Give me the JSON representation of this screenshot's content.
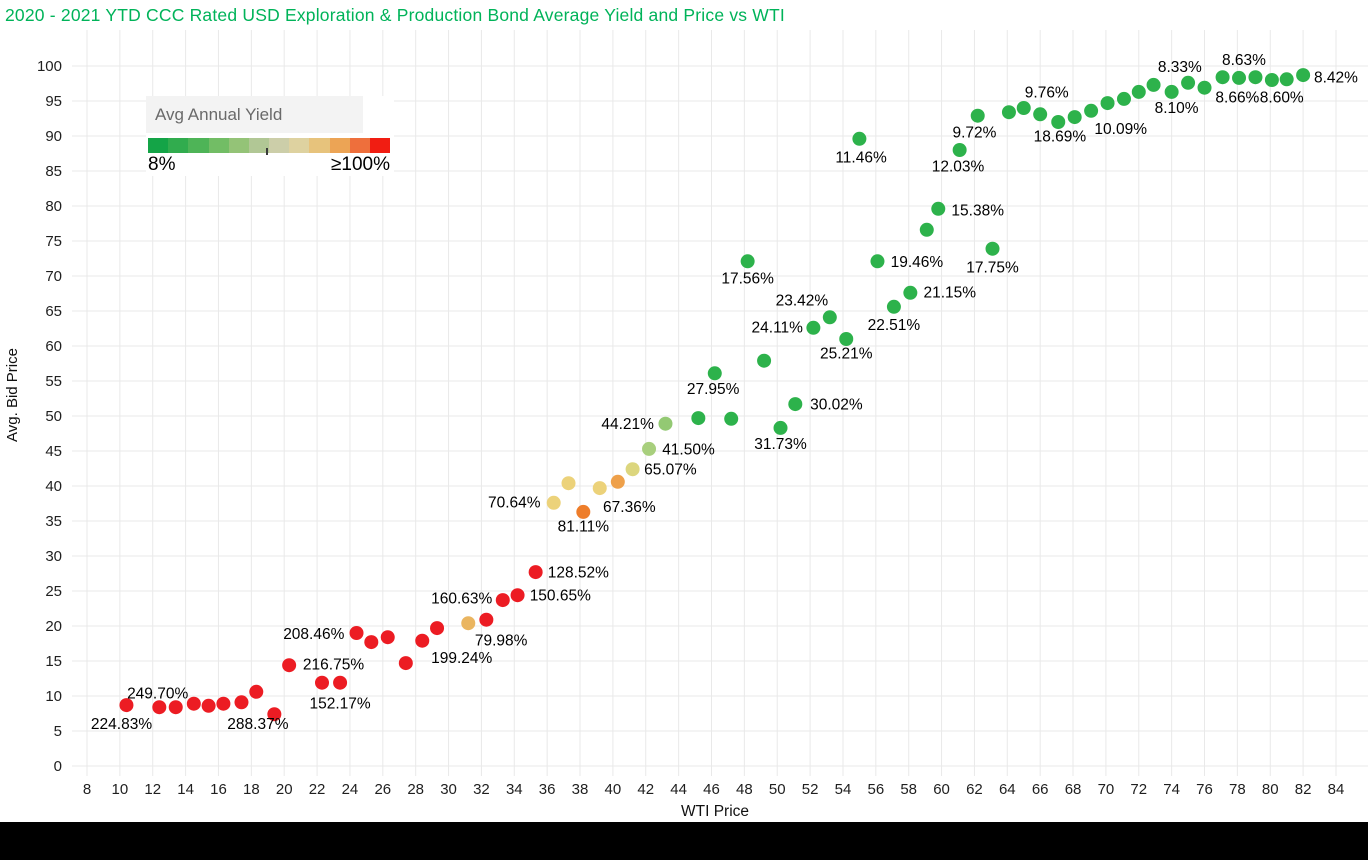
{
  "title": {
    "text": "2020 - 2021 YTD CCC Rated USD Exploration & Production Bond Average Yield and Price vs WTI",
    "color": "#00b359"
  },
  "legend": {
    "title": "Avg Annual Yield",
    "min_label": "8%",
    "max_label": "≥100%",
    "tick_fraction": 0.486,
    "gradient_colors": [
      "#14a447",
      "#31ac4e",
      "#4eb457",
      "#72bd65",
      "#94c377",
      "#b1c795",
      "#cccea9",
      "#ded2a0",
      "#e7c37c",
      "#eca455",
      "#ee6f3c",
      "#f11d12"
    ]
  },
  "axes": {
    "x": {
      "title": "WTI Price",
      "ticks": [
        8,
        10,
        12,
        14,
        16,
        18,
        20,
        22,
        24,
        26,
        28,
        30,
        32,
        34,
        36,
        38,
        40,
        42,
        44,
        46,
        48,
        50,
        52,
        54,
        56,
        58,
        60,
        62,
        64,
        66,
        68,
        70,
        72,
        74,
        76,
        78,
        80,
        82,
        84
      ]
    },
    "y": {
      "title": "Avg. Bid Price",
      "ticks": [
        0,
        5,
        10,
        15,
        20,
        25,
        30,
        35,
        40,
        45,
        50,
        55,
        60,
        65,
        70,
        75,
        80,
        85,
        90,
        95,
        100
      ]
    }
  },
  "chart_data": {
    "type": "scatter",
    "title": "2020 - 2021 YTD CCC Rated USD Exploration & Production Bond Average Yield and Price vs WTI",
    "xlabel": "WTI Price",
    "ylabel": "Avg. Bid Price",
    "xlim": [
      7,
      85
    ],
    "ylim": [
      0,
      102
    ],
    "grid": true,
    "legend_position": "top-left",
    "color_scale": {
      "label": "Avg Annual Yield",
      "min": "8%",
      "max": "≥100%",
      "low_color": "#14a447",
      "high_color": "#f11d12"
    },
    "palette": {
      "red": "#ec1c23",
      "tan": "#eab560",
      "yellow": "#ecd27a",
      "orange": "#ee7d2a",
      "orange2": "#eea04a",
      "khaki": "#dcd67e",
      "lightgreen": "#a8cf7d",
      "lightgreen2": "#93c973",
      "green": "#2db24b"
    },
    "points": [
      {
        "x": 10.4,
        "y": 8.7,
        "c": "red",
        "yield": "224.83%"
      },
      {
        "x": 12.4,
        "y": 8.4,
        "c": "red",
        "yield": "249.70%"
      },
      {
        "x": 13.4,
        "y": 8.4,
        "c": "red"
      },
      {
        "x": 14.5,
        "y": 8.9,
        "c": "red"
      },
      {
        "x": 15.4,
        "y": 8.6,
        "c": "red",
        "yield": "288.37%"
      },
      {
        "x": 16.3,
        "y": 8.9,
        "c": "red"
      },
      {
        "x": 17.4,
        "y": 9.1,
        "c": "red"
      },
      {
        "x": 18.3,
        "y": 10.6,
        "c": "red"
      },
      {
        "x": 19.4,
        "y": 7.4,
        "c": "red"
      },
      {
        "x": 20.3,
        "y": 14.4,
        "c": "red",
        "yield": "216.75%"
      },
      {
        "x": 22.3,
        "y": 11.9,
        "c": "red",
        "yield": "152.17%"
      },
      {
        "x": 23.4,
        "y": 11.9,
        "c": "red"
      },
      {
        "x": 24.4,
        "y": 19.0,
        "c": "red",
        "yield": "208.46%"
      },
      {
        "x": 25.3,
        "y": 17.7,
        "c": "red"
      },
      {
        "x": 26.3,
        "y": 18.4,
        "c": "red"
      },
      {
        "x": 27.4,
        "y": 14.7,
        "c": "red",
        "yield": "199.24%"
      },
      {
        "x": 28.4,
        "y": 17.9,
        "c": "red"
      },
      {
        "x": 29.3,
        "y": 19.7,
        "c": "red"
      },
      {
        "x": 31.2,
        "y": 20.4,
        "c": "tan",
        "yield": "79.98%"
      },
      {
        "x": 32.3,
        "y": 20.9,
        "c": "red"
      },
      {
        "x": 33.3,
        "y": 23.7,
        "c": "red",
        "yield": "160.63%"
      },
      {
        "x": 34.2,
        "y": 24.4,
        "c": "red",
        "yield": "150.65%"
      },
      {
        "x": 35.3,
        "y": 27.7,
        "c": "red",
        "yield": "128.52%"
      },
      {
        "x": 36.4,
        "y": 37.6,
        "c": "yellow",
        "yield": "70.64%"
      },
      {
        "x": 37.3,
        "y": 40.4,
        "c": "yellow"
      },
      {
        "x": 38.2,
        "y": 36.3,
        "c": "orange",
        "yield": "81.11%"
      },
      {
        "x": 39.2,
        "y": 39.7,
        "c": "yellow"
      },
      {
        "x": 40.3,
        "y": 40.6,
        "c": "orange2",
        "yield": "67.36%"
      },
      {
        "x": 41.2,
        "y": 42.4,
        "c": "khaki",
        "yield": "65.07%"
      },
      {
        "x": 42.2,
        "y": 45.3,
        "c": "lightgreen",
        "yield": "41.50%"
      },
      {
        "x": 43.2,
        "y": 48.9,
        "c": "lightgreen2",
        "yield": "44.21%"
      },
      {
        "x": 45.2,
        "y": 49.7,
        "c": "green",
        "yield": "27.95%"
      },
      {
        "x": 46.2,
        "y": 56.1,
        "c": "green"
      },
      {
        "x": 47.2,
        "y": 49.6,
        "c": "green"
      },
      {
        "x": 48.2,
        "y": 72.1,
        "c": "green",
        "yield": "17.56%"
      },
      {
        "x": 49.2,
        "y": 57.9,
        "c": "green"
      },
      {
        "x": 50.2,
        "y": 48.3,
        "c": "green",
        "yield": "31.73%"
      },
      {
        "x": 51.1,
        "y": 51.7,
        "c": "green",
        "yield": "30.02%"
      },
      {
        "x": 52.2,
        "y": 62.6,
        "c": "green",
        "yield": "24.11%"
      },
      {
        "x": 53.2,
        "y": 64.1,
        "c": "green",
        "yield": "23.42%"
      },
      {
        "x": 54.2,
        "y": 61.0,
        "c": "green",
        "yield": "25.21%"
      },
      {
        "x": 55.0,
        "y": 89.6,
        "c": "green",
        "yield": "11.46%"
      },
      {
        "x": 56.1,
        "y": 72.1,
        "c": "green",
        "yield": "19.46%"
      },
      {
        "x": 57.1,
        "y": 65.6,
        "c": "green",
        "yield": "22.51%"
      },
      {
        "x": 58.1,
        "y": 67.6,
        "c": "green",
        "yield": "21.15%"
      },
      {
        "x": 59.1,
        "y": 76.6,
        "c": "green"
      },
      {
        "x": 59.8,
        "y": 79.6,
        "c": "green",
        "yield": "15.38%"
      },
      {
        "x": 61.1,
        "y": 88.0,
        "c": "green",
        "yield": "12.03%"
      },
      {
        "x": 62.2,
        "y": 92.9,
        "c": "green",
        "yield": "9.72%"
      },
      {
        "x": 63.1,
        "y": 73.9,
        "c": "green",
        "yield": "17.75%"
      },
      {
        "x": 64.1,
        "y": 93.4,
        "c": "green"
      },
      {
        "x": 65.0,
        "y": 94.0,
        "c": "green",
        "yield": "9.76%"
      },
      {
        "x": 66.0,
        "y": 93.1,
        "c": "green"
      },
      {
        "x": 67.1,
        "y": 92.0,
        "c": "green",
        "yield": "18.69%"
      },
      {
        "x": 68.1,
        "y": 92.7,
        "c": "green"
      },
      {
        "x": 69.1,
        "y": 93.6,
        "c": "green",
        "yield": "10.09%"
      },
      {
        "x": 70.1,
        "y": 94.7,
        "c": "green"
      },
      {
        "x": 71.1,
        "y": 95.3,
        "c": "green"
      },
      {
        "x": 72.0,
        "y": 96.3,
        "c": "green"
      },
      {
        "x": 72.9,
        "y": 97.3,
        "c": "green"
      },
      {
        "x": 74.0,
        "y": 96.3,
        "c": "green",
        "yield": "8.10%"
      },
      {
        "x": 75.0,
        "y": 97.6,
        "c": "green",
        "yield": "8.33%"
      },
      {
        "x": 76.0,
        "y": 96.9,
        "c": "green"
      },
      {
        "x": 77.1,
        "y": 98.4,
        "c": "green",
        "yield": "8.66%"
      },
      {
        "x": 78.1,
        "y": 98.3,
        "c": "green",
        "yield": "8.63%"
      },
      {
        "x": 79.1,
        "y": 98.4,
        "c": "green"
      },
      {
        "x": 80.1,
        "y": 98.0,
        "c": "green",
        "yield": "8.60%"
      },
      {
        "x": 81.0,
        "y": 98.1,
        "c": "green"
      },
      {
        "x": 82.0,
        "y": 98.7,
        "c": "green",
        "yield": "8.42%"
      }
    ],
    "annotations": [
      {
        "text": "224.83%",
        "x": 10.1,
        "y": 6.1
      },
      {
        "text": "249.70%",
        "x": 12.3,
        "y": 10.4
      },
      {
        "text": "288.37%",
        "x": 18.4,
        "y": 6.1
      },
      {
        "text": "216.75%",
        "x": 23.0,
        "y": 14.6
      },
      {
        "text": "152.17%",
        "x": 23.4,
        "y": 9.0
      },
      {
        "text": "208.46%",
        "x": 21.8,
        "y": 18.9
      },
      {
        "text": "199.24%",
        "x": 30.8,
        "y": 15.5
      },
      {
        "text": "160.63%",
        "x": 30.8,
        "y": 24.0
      },
      {
        "text": "150.65%",
        "x": 36.8,
        "y": 24.4
      },
      {
        "text": "128.52%",
        "x": 37.9,
        "y": 27.7
      },
      {
        "text": "79.98%",
        "x": 33.2,
        "y": 18.0
      },
      {
        "text": "70.64%",
        "x": 34.0,
        "y": 37.7
      },
      {
        "text": "81.11%",
        "x": 38.2,
        "y": 34.3
      },
      {
        "text": "67.36%",
        "x": 41.0,
        "y": 37.1
      },
      {
        "text": "65.07%",
        "x": 43.5,
        "y": 42.4
      },
      {
        "text": "41.50%",
        "x": 44.6,
        "y": 45.3
      },
      {
        "text": "44.21%",
        "x": 40.9,
        "y": 48.9
      },
      {
        "text": "27.95%",
        "x": 46.1,
        "y": 53.9
      },
      {
        "text": "31.73%",
        "x": 50.2,
        "y": 46.1
      },
      {
        "text": "30.02%",
        "x": 53.6,
        "y": 51.7
      },
      {
        "text": "24.11%",
        "x": 50.0,
        "y": 62.7
      },
      {
        "text": "23.42%",
        "x": 51.5,
        "y": 66.6
      },
      {
        "text": "25.21%",
        "x": 54.2,
        "y": 59.0
      },
      {
        "text": "17.56%",
        "x": 48.2,
        "y": 69.7
      },
      {
        "text": "22.51%",
        "x": 57.1,
        "y": 63.1
      },
      {
        "text": "21.15%",
        "x": 60.5,
        "y": 67.7
      },
      {
        "text": "19.46%",
        "x": 58.5,
        "y": 72.1
      },
      {
        "text": "15.38%",
        "x": 62.2,
        "y": 79.4
      },
      {
        "text": "17.75%",
        "x": 63.1,
        "y": 71.3
      },
      {
        "text": "11.46%",
        "x": 55.1,
        "y": 87.0
      },
      {
        "text": "12.03%",
        "x": 61.0,
        "y": 85.7
      },
      {
        "text": "9.72%",
        "x": 62.0,
        "y": 90.6
      },
      {
        "text": "9.76%",
        "x": 66.4,
        "y": 96.3
      },
      {
        "text": "18.69%",
        "x": 67.2,
        "y": 90.0
      },
      {
        "text": "10.09%",
        "x": 70.9,
        "y": 91.1
      },
      {
        "text": "8.10%",
        "x": 74.3,
        "y": 94.1
      },
      {
        "text": "8.33%",
        "x": 74.5,
        "y": 99.9
      },
      {
        "text": "8.66%",
        "x": 78.0,
        "y": 95.6
      },
      {
        "text": "8.63%",
        "x": 78.4,
        "y": 100.9
      },
      {
        "text": "8.60%",
        "x": 80.7,
        "y": 95.6
      },
      {
        "text": "8.42%",
        "x": 84.0,
        "y": 98.4
      }
    ]
  }
}
